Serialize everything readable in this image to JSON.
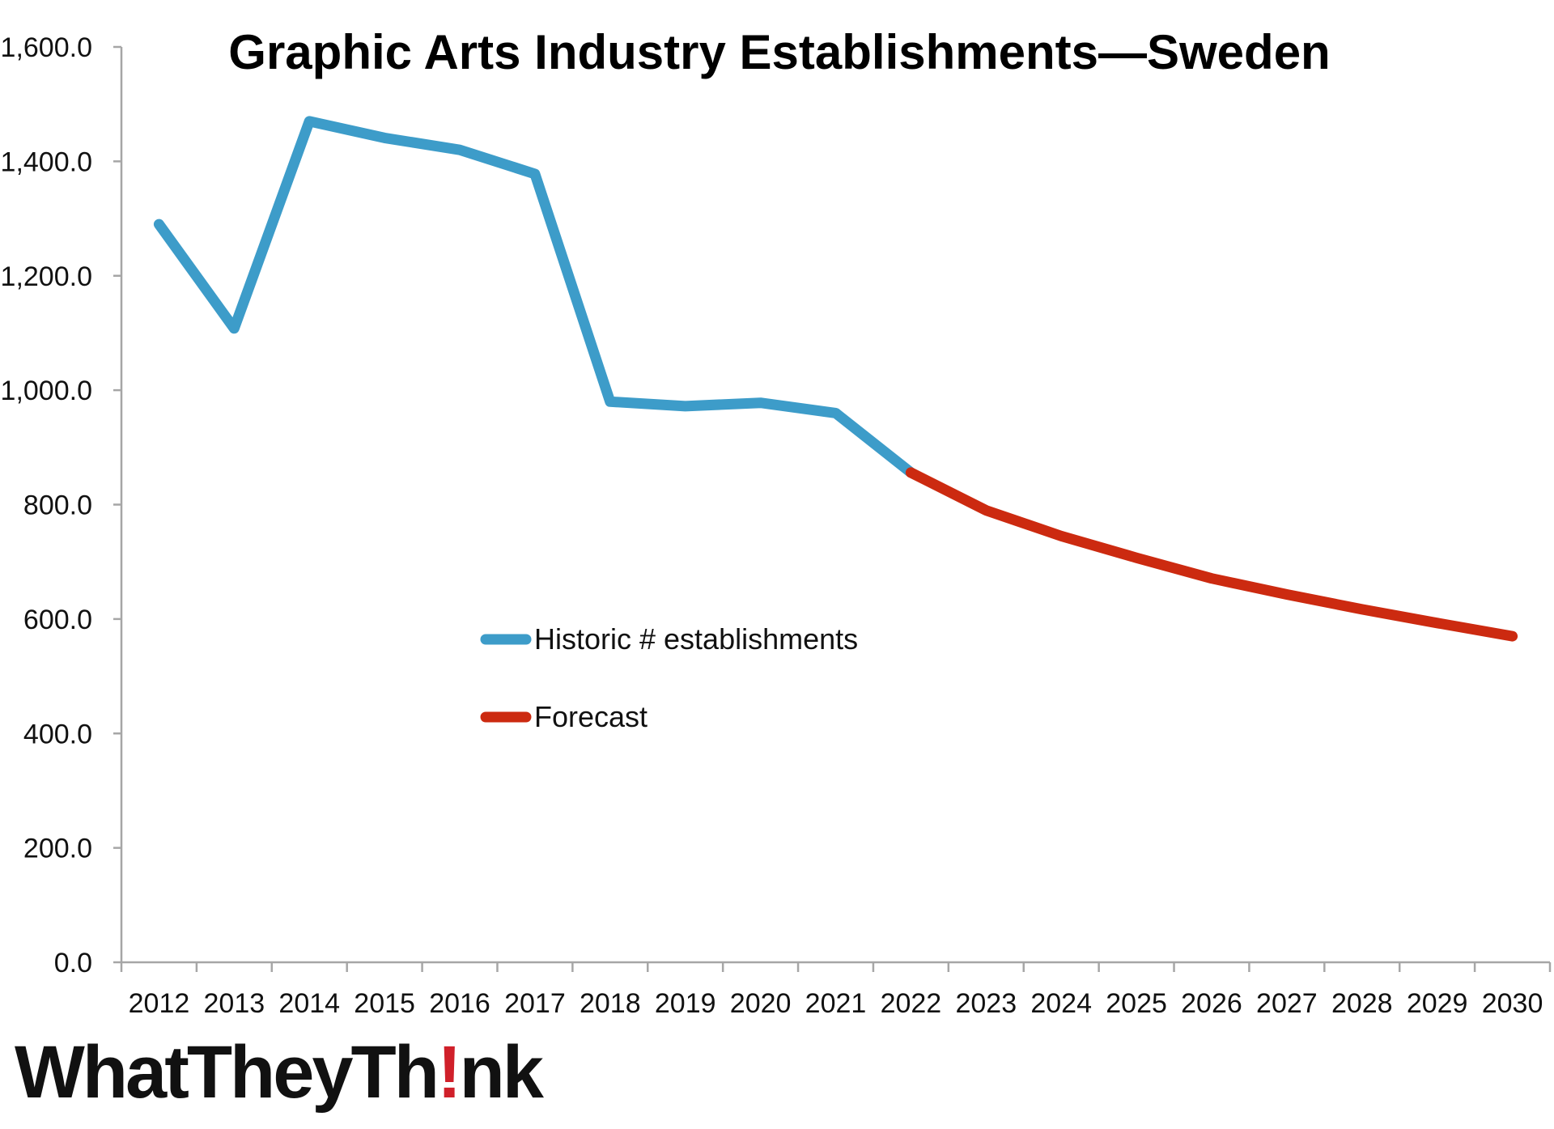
{
  "chart_data": {
    "type": "line",
    "title": "Graphic Arts Industry Establishments—Sweden",
    "xlabel": "",
    "ylabel": "",
    "ylim": [
      0,
      1600
    ],
    "yticks": [
      "0.0",
      "200.0",
      "400.0",
      "600.0",
      "800.0",
      "1,000.0",
      "1,200.0",
      "1,400.0",
      "1,600.0"
    ],
    "ytick_values": [
      0,
      200,
      400,
      600,
      800,
      1000,
      1200,
      1400,
      1600
    ],
    "categories": [
      "2012",
      "2013",
      "2014",
      "2015",
      "2016",
      "2017",
      "2018",
      "2019",
      "2020",
      "2021",
      "2022",
      "2023",
      "2024",
      "2025",
      "2026",
      "2027",
      "2028",
      "2029",
      "2030"
    ],
    "grid": false,
    "legend_placement": "center-left",
    "series": [
      {
        "name": "Historic # establishments",
        "color": "#3d9cc9",
        "values": [
          1290,
          1108,
          1470,
          1441,
          1420,
          1378,
          980,
          972,
          978,
          960,
          856,
          null,
          null,
          null,
          null,
          null,
          null,
          null,
          null
        ]
      },
      {
        "name": "Forecast",
        "color": "#cc2a10",
        "values": [
          null,
          null,
          null,
          null,
          null,
          null,
          null,
          null,
          null,
          null,
          856,
          790,
          745,
          707,
          671,
          643,
          617,
          593,
          570
        ]
      }
    ]
  },
  "logo": {
    "brand": "WhatTheyTh!nk",
    "part1": "WhatTheyTh",
    "part2": "!",
    "part3": "nk",
    "accent_color": "#d0202a"
  }
}
